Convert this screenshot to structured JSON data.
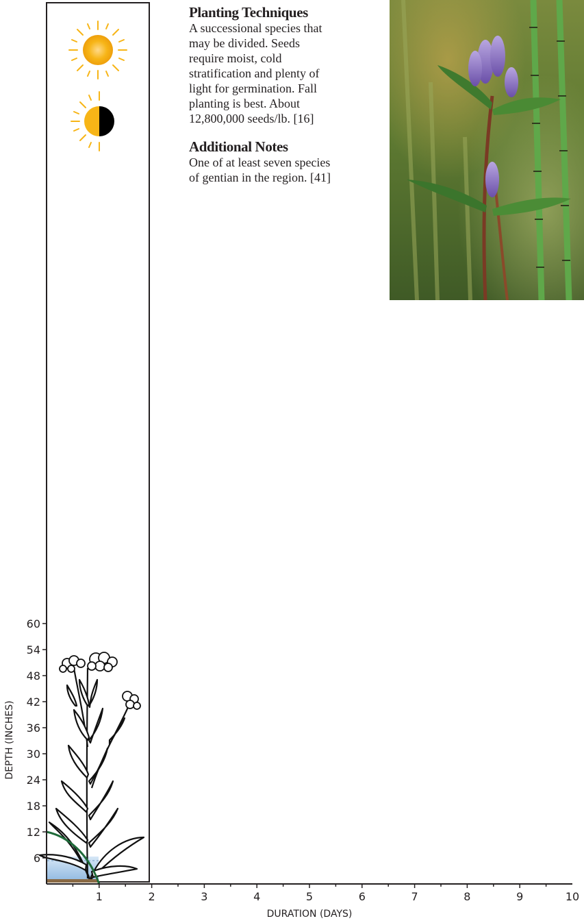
{
  "light": {
    "icons": [
      "full-sun-icon",
      "partial-sun-icon"
    ],
    "sun_color": "#f7b517"
  },
  "planting": {
    "heading": "Planting Techniques",
    "lines": [
      "A successional species that",
      "may be divided.  Seeds",
      "require moist, cold",
      "stratification and plenty of",
      "light for germination.  Fall",
      "planting is best.  About",
      "12,800,000 seeds/lb. [16]"
    ]
  },
  "notes": {
    "heading": "Additional Notes",
    "lines": [
      "One of at least seven species",
      "of gentian in the region. [41]"
    ]
  },
  "chart_data": {
    "type": "area",
    "xlabel": "DURATION (DAYS)",
    "ylabel": "DEPTH  (INCHES)",
    "xlim": [
      0,
      10
    ],
    "ylim": [
      0,
      60
    ],
    "x_ticks": [
      "1",
      "2",
      "3",
      "4",
      "5",
      "6",
      "7",
      "8",
      "9",
      "10"
    ],
    "y_ticks": [
      "6",
      "12",
      "18",
      "24",
      "30",
      "36",
      "42",
      "48",
      "54",
      "60"
    ],
    "tolerance_curve": {
      "x": [
        0,
        0.4,
        0.8,
        1.0
      ],
      "y": [
        12,
        11,
        7,
        0
      ]
    },
    "water_depth": 6,
    "colors": {
      "curve": "#1f6b3a",
      "water": "#a9cbe9",
      "soil": "#8a6a45"
    }
  }
}
